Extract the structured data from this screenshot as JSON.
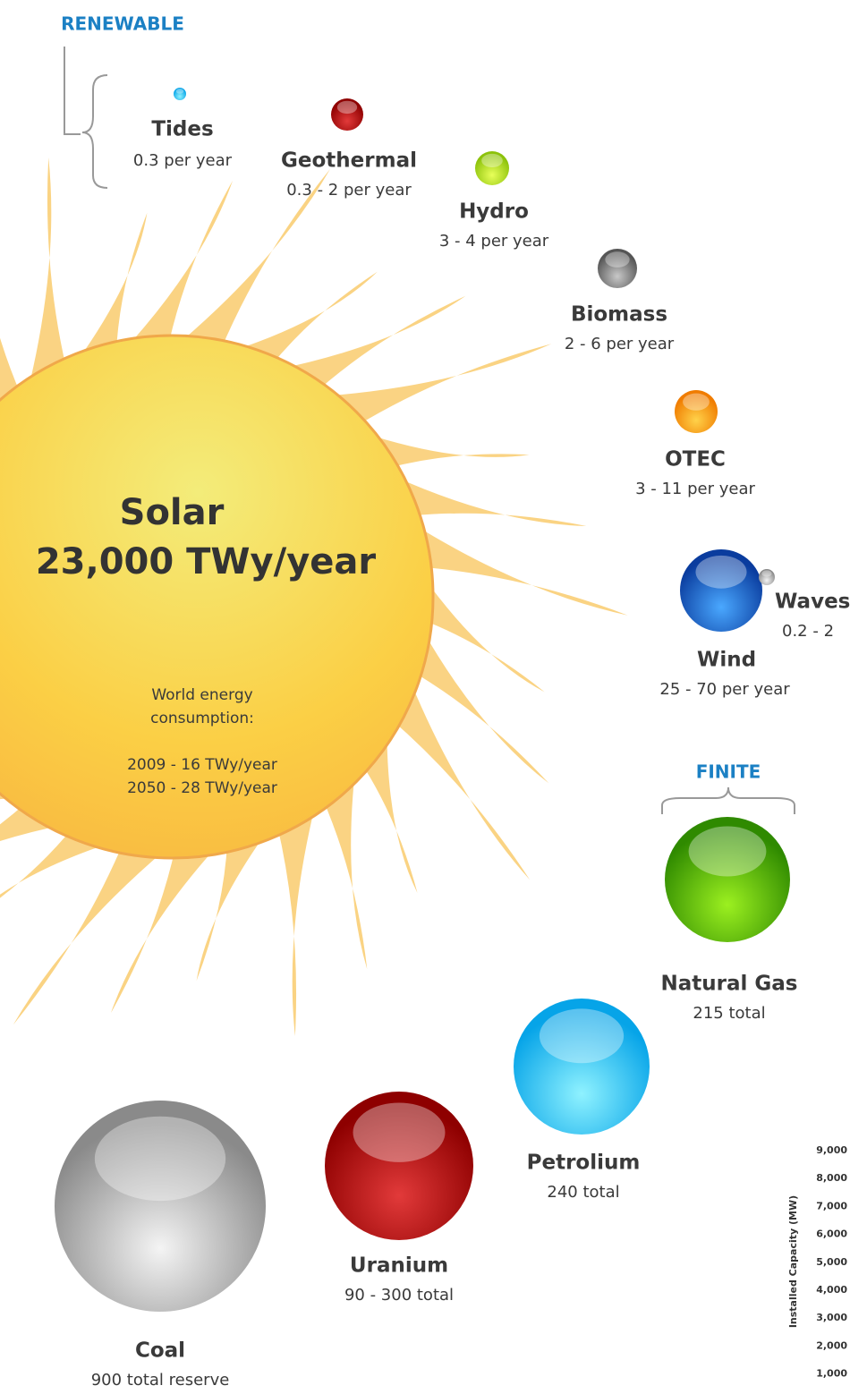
{
  "headings": {
    "renewable": "RENEWABLE",
    "finite": "FINITE"
  },
  "sun": {
    "label": "Solar",
    "value": "23,000 TWy/year",
    "note": [
      "World energy",
      "consumption:",
      "2009 - 16 TWy/year",
      "2050 - 28 TWy/year"
    ]
  },
  "renewable": [
    {
      "label": "Tides",
      "detail": "0.3 per year"
    },
    {
      "label": "Geothermal",
      "detail": "0.3 - 2 per year"
    },
    {
      "label": "Hydro",
      "detail": "3 - 4 per year"
    },
    {
      "label": "Biomass",
      "detail": "2 - 6 per year"
    },
    {
      "label": "OTEC",
      "detail": "3 - 11 per year"
    },
    {
      "label": "Waves",
      "detail": "0.2 - 2"
    },
    {
      "label": "Wind",
      "detail": "25 - 70 per year"
    }
  ],
  "finite": [
    {
      "label": "Natural Gas",
      "detail": "215 total"
    },
    {
      "label": "Petrolium",
      "detail": "240 total"
    },
    {
      "label": "Uranium",
      "detail": "90 - 300 total"
    },
    {
      "label": "Coal",
      "detail": "900 total reserve"
    }
  ],
  "axis": {
    "title": "Installed Capacity (MW)",
    "ticks": [
      "9,000",
      "8,000",
      "7,000",
      "6,000",
      "5,000",
      "4,000",
      "3,000",
      "2,000",
      "1,000"
    ]
  }
}
